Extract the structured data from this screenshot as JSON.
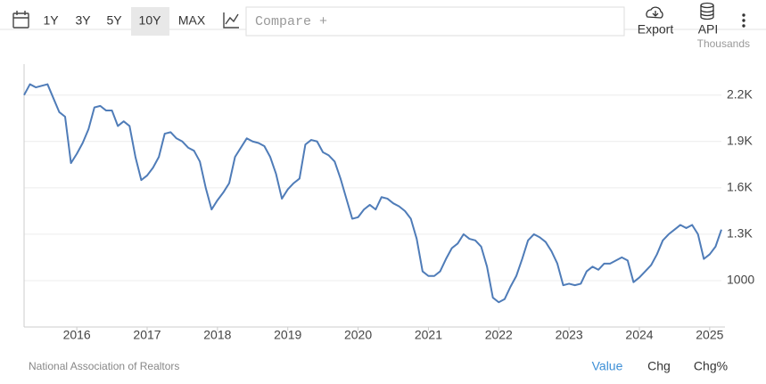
{
  "toolbar": {
    "ranges": [
      "1Y",
      "3Y",
      "5Y",
      "10Y",
      "MAX"
    ],
    "compare_placeholder": "Compare +",
    "export": "Export",
    "api": "API"
  },
  "chart_data": {
    "type": "line",
    "unit_label": "Thousands",
    "source": "National Association of Realtors",
    "color": "#4f7cb8",
    "grid": true,
    "categories": [
      null,
      null,
      null,
      null,
      null,
      null,
      null,
      null,
      null,
      "2016",
      null,
      null,
      null,
      null,
      null,
      null,
      null,
      null,
      null,
      null,
      null,
      "2017",
      null,
      null,
      null,
      null,
      null,
      null,
      null,
      null,
      null,
      null,
      null,
      "2018",
      null,
      null,
      null,
      null,
      null,
      null,
      null,
      null,
      null,
      null,
      null,
      "2019",
      null,
      null,
      null,
      null,
      null,
      null,
      null,
      null,
      null,
      null,
      null,
      "2020",
      null,
      null,
      null,
      null,
      null,
      null,
      null,
      null,
      null,
      null,
      null,
      "2021",
      null,
      null,
      null,
      null,
      null,
      null,
      null,
      null,
      null,
      null,
      null,
      "2022",
      null,
      null,
      null,
      null,
      null,
      null,
      null,
      null,
      null,
      null,
      null,
      "2023",
      null,
      null,
      null,
      null,
      null,
      null,
      null,
      null,
      null,
      null,
      null,
      "2024",
      null,
      null,
      null,
      null,
      null,
      null,
      null,
      null,
      null,
      null,
      null,
      "2025",
      null,
      null
    ],
    "values": [
      2200,
      2270,
      2250,
      2260,
      2270,
      2180,
      2090,
      2060,
      1760,
      1820,
      1890,
      1980,
      2120,
      2130,
      2100,
      2100,
      2000,
      2030,
      2000,
      1800,
      1650,
      1680,
      1730,
      1800,
      1950,
      1960,
      1920,
      1900,
      1860,
      1840,
      1770,
      1600,
      1460,
      1520,
      1570,
      1630,
      1800,
      1860,
      1920,
      1900,
      1890,
      1870,
      1800,
      1690,
      1530,
      1590,
      1630,
      1660,
      1880,
      1910,
      1900,
      1830,
      1810,
      1770,
      1660,
      1530,
      1400,
      1410,
      1460,
      1490,
      1460,
      1540,
      1530,
      1500,
      1480,
      1450,
      1400,
      1270,
      1060,
      1030,
      1030,
      1060,
      1140,
      1210,
      1240,
      1300,
      1270,
      1260,
      1220,
      1090,
      890,
      860,
      880,
      960,
      1030,
      1140,
      1260,
      1300,
      1280,
      1250,
      1190,
      1110,
      970,
      980,
      970,
      980,
      1060,
      1090,
      1070,
      1110,
      1110,
      1130,
      1150,
      1130,
      990,
      1020,
      1060,
      1100,
      1170,
      1260,
      1300,
      1330,
      1360,
      1340,
      1360,
      1300,
      1140,
      1170,
      1220,
      1330
    ],
    "ylim": [
      700,
      2400
    ],
    "yticks": [
      1000,
      {
        "value": 1300,
        "label": "1.3K"
      },
      {
        "value": 1600,
        "label": "1.6K"
      },
      {
        "value": 1900,
        "label": "1.9K"
      },
      {
        "value": 2200,
        "label": "2.2K"
      }
    ]
  },
  "footer": {
    "tabs": [
      "Value",
      "Chg",
      "Chg%"
    ]
  }
}
